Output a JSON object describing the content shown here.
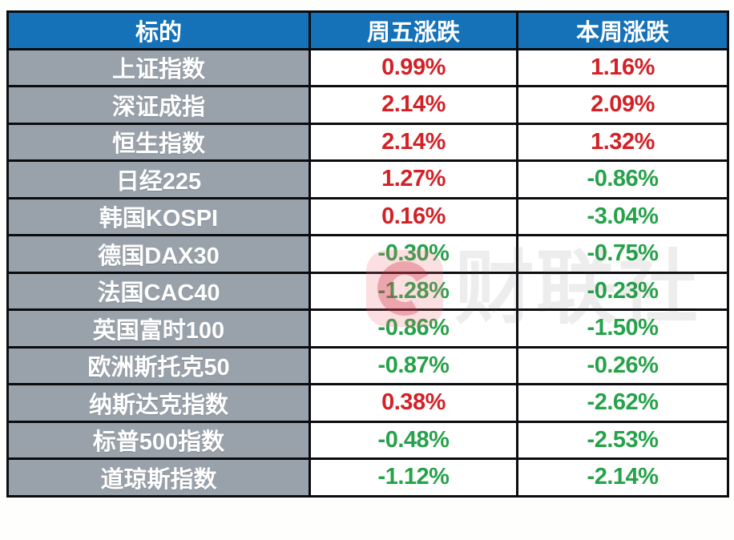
{
  "colors": {
    "header_bg": "#1571b8",
    "label_bg": "#99a2ab",
    "up": "#d32127",
    "down": "#26a24a",
    "border": "#0b0c10",
    "page_bg": "#fefefc"
  },
  "table": {
    "columns": [
      "标的",
      "周五涨跌",
      "本周涨跌"
    ],
    "rows": [
      {
        "label": "上证指数",
        "friday": {
          "value": "0.99%",
          "dir": "up"
        },
        "week": {
          "value": "1.16%",
          "dir": "up"
        }
      },
      {
        "label": "深证成指",
        "friday": {
          "value": "2.14%",
          "dir": "up"
        },
        "week": {
          "value": "2.09%",
          "dir": "up"
        }
      },
      {
        "label": "恒生指数",
        "friday": {
          "value": "2.14%",
          "dir": "up"
        },
        "week": {
          "value": "1.32%",
          "dir": "up"
        }
      },
      {
        "label": "日经225",
        "friday": {
          "value": "1.27%",
          "dir": "up"
        },
        "week": {
          "value": "-0.86%",
          "dir": "down"
        }
      },
      {
        "label": "韩国KOSPI",
        "friday": {
          "value": "0.16%",
          "dir": "up"
        },
        "week": {
          "value": "-3.04%",
          "dir": "down"
        }
      },
      {
        "label": "德国DAX30",
        "friday": {
          "value": "-0.30%",
          "dir": "down"
        },
        "week": {
          "value": "-0.75%",
          "dir": "down"
        }
      },
      {
        "label": "法国CAC40",
        "friday": {
          "value": "-1.28%",
          "dir": "down"
        },
        "week": {
          "value": "-0.23%",
          "dir": "down"
        }
      },
      {
        "label": "英国富时100",
        "friday": {
          "value": "-0.86%",
          "dir": "down"
        },
        "week": {
          "value": "-1.50%",
          "dir": "down"
        }
      },
      {
        "label": "欧洲斯托克50",
        "friday": {
          "value": "-0.87%",
          "dir": "down"
        },
        "week": {
          "value": "-0.26%",
          "dir": "down"
        }
      },
      {
        "label": "纳斯达克指数",
        "friday": {
          "value": "0.38%",
          "dir": "up"
        },
        "week": {
          "value": "-2.62%",
          "dir": "down"
        }
      },
      {
        "label": "标普500指数",
        "friday": {
          "value": "-0.48%",
          "dir": "down"
        },
        "week": {
          "value": "-2.53%",
          "dir": "down"
        }
      },
      {
        "label": "道琼斯指数",
        "friday": {
          "value": "-1.12%",
          "dir": "down"
        },
        "week": {
          "value": "-2.14%",
          "dir": "down"
        }
      }
    ]
  },
  "watermark": {
    "brand": "财联社"
  },
  "chart_data": {
    "type": "table",
    "title": "",
    "categories": [
      "上证指数",
      "深证成指",
      "恒生指数",
      "日经225",
      "韩国KOSPI",
      "德国DAX30",
      "法国CAC40",
      "英国富时100",
      "欧洲斯托克50",
      "纳斯达克指数",
      "标普500指数",
      "道琼斯指数"
    ],
    "series": [
      {
        "name": "周五涨跌",
        "values": [
          0.99,
          2.14,
          2.14,
          1.27,
          0.16,
          -0.3,
          -1.28,
          -0.86,
          -0.87,
          0.38,
          -0.48,
          -1.12
        ]
      },
      {
        "name": "本周涨跌",
        "values": [
          1.16,
          2.09,
          1.32,
          -0.86,
          -3.04,
          -0.75,
          -0.23,
          -1.5,
          -0.26,
          -2.62,
          -2.53,
          -2.14
        ]
      }
    ],
    "value_format": "percent",
    "color_rule": "positive=red, negative=green (CN market convention)"
  }
}
